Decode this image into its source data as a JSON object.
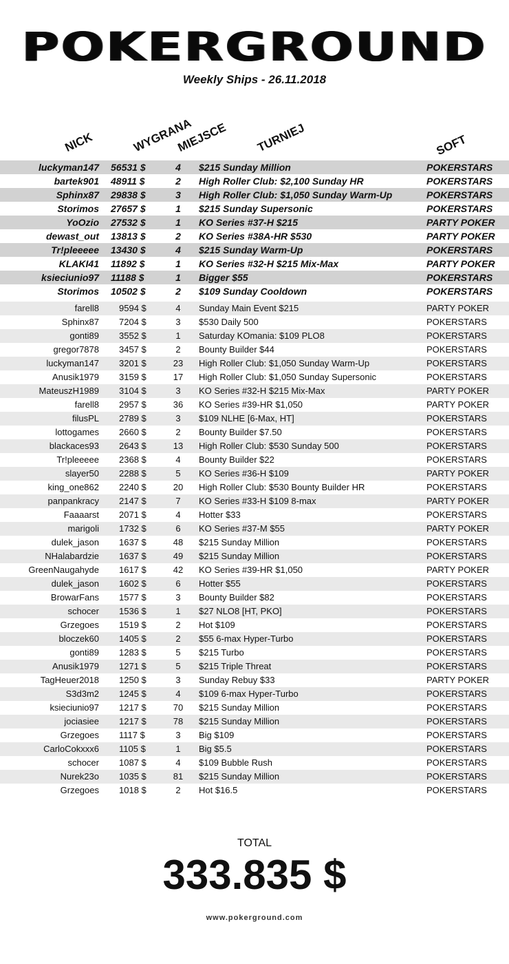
{
  "header": {
    "logo": "POKERGROUND",
    "subtitle": "Weekly Ships - 26.11.2018"
  },
  "columns": {
    "nick": "NICK",
    "amount": "WYGRANA",
    "place": "MIEJSCE",
    "tournament": "TURNIEJ",
    "soft": "SOFT"
  },
  "top_rows": [
    {
      "nick": "luckyman147",
      "amount": "56531 $",
      "place": "4",
      "tournament": "$215 Sunday Million",
      "soft": "POKERSTARS"
    },
    {
      "nick": "bartek901",
      "amount": "48911 $",
      "place": "2",
      "tournament": "High Roller Club: $2,100 Sunday HR",
      "soft": "POKERSTARS"
    },
    {
      "nick": "Sphinx87",
      "amount": "29838 $",
      "place": "3",
      "tournament": "High Roller Club: $1,050 Sunday Warm-Up",
      "soft": "POKERSTARS"
    },
    {
      "nick": "Storimos",
      "amount": "27657 $",
      "place": "1",
      "tournament": "$215 Sunday Supersonic",
      "soft": "POKERSTARS"
    },
    {
      "nick": "YoOzio",
      "amount": "27532 $",
      "place": "1",
      "tournament": "KO Series #37-H $215",
      "soft": "PARTY POKER"
    },
    {
      "nick": "dewast_out",
      "amount": "13813 $",
      "place": "2",
      "tournament": "KO Series #38A-HR $530",
      "soft": "PARTY POKER"
    },
    {
      "nick": "Tr!pleeeee",
      "amount": "13430 $",
      "place": "4",
      "tournament": "$215 Sunday Warm-Up",
      "soft": "POKERSTARS"
    },
    {
      "nick": "KLAKI41",
      "amount": "11892 $",
      "place": "1",
      "tournament": "KO Series #32-H $215 Mix-Max",
      "soft": "PARTY POKER"
    },
    {
      "nick": "ksieciunio97",
      "amount": "11188 $",
      "place": "1",
      "tournament": "Bigger $55",
      "soft": "POKERSTARS"
    },
    {
      "nick": "Storimos",
      "amount": "10502 $",
      "place": "2",
      "tournament": "$109 Sunday Cooldown",
      "soft": "POKERSTARS"
    }
  ],
  "rows": [
    {
      "nick": "farell8",
      "amount": "9594 $",
      "place": "4",
      "tournament": "Sunday Main Event $215",
      "soft": "PARTY POKER"
    },
    {
      "nick": "Sphinx87",
      "amount": "7204 $",
      "place": "3",
      "tournament": "$530 Daily 500",
      "soft": "POKERSTARS"
    },
    {
      "nick": "gonti89",
      "amount": "3552 $",
      "place": "1",
      "tournament": "Saturday KOmania: $109 PLO8",
      "soft": "POKERSTARS"
    },
    {
      "nick": "gregor7878",
      "amount": "3457 $",
      "place": "2",
      "tournament": "Bounty Builder $44",
      "soft": "POKERSTARS"
    },
    {
      "nick": "luckyman147",
      "amount": "3201 $",
      "place": "23",
      "tournament": "High Roller Club: $1,050 Sunday Warm-Up",
      "soft": "POKERSTARS"
    },
    {
      "nick": "Anusik1979",
      "amount": "3159 $",
      "place": "17",
      "tournament": "High Roller Club: $1,050 Sunday Supersonic",
      "soft": "POKERSTARS"
    },
    {
      "nick": "MateuszH1989",
      "amount": "3104 $",
      "place": "3",
      "tournament": "KO Series #32-H $215 Mix-Max",
      "soft": "PARTY POKER"
    },
    {
      "nick": "farell8",
      "amount": "2957 $",
      "place": "36",
      "tournament": "KO Series #39-HR $1,050",
      "soft": "PARTY POKER"
    },
    {
      "nick": "filusPL",
      "amount": "2789 $",
      "place": "3",
      "tournament": "$109 NLHE [6-Max, HT]",
      "soft": "POKERSTARS"
    },
    {
      "nick": "lottogames",
      "amount": "2660 $",
      "place": "2",
      "tournament": "Bounty Builder $7.50",
      "soft": "POKERSTARS"
    },
    {
      "nick": "blackaces93",
      "amount": "2643 $",
      "place": "13",
      "tournament": "High Roller Club: $530 Sunday 500",
      "soft": "POKERSTARS"
    },
    {
      "nick": "Tr!pleeeee",
      "amount": "2368 $",
      "place": "4",
      "tournament": "Bounty Builder $22",
      "soft": "POKERSTARS"
    },
    {
      "nick": "slayer50",
      "amount": "2288 $",
      "place": "5",
      "tournament": "KO Series #36-H $109",
      "soft": "PARTY POKER"
    },
    {
      "nick": "king_one862",
      "amount": "2240 $",
      "place": "20",
      "tournament": "High Roller Club: $530 Bounty Builder HR",
      "soft": "POKERSTARS"
    },
    {
      "nick": "panpankracy",
      "amount": "2147 $",
      "place": "7",
      "tournament": "KO Series #33-H $109 8-max",
      "soft": "PARTY POKER"
    },
    {
      "nick": "Faaaarst",
      "amount": "2071 $",
      "place": "4",
      "tournament": "Hotter $33",
      "soft": "POKERSTARS"
    },
    {
      "nick": "marigoli",
      "amount": "1732 $",
      "place": "6",
      "tournament": "KO Series #37-M $55",
      "soft": "PARTY POKER"
    },
    {
      "nick": "dulek_jason",
      "amount": "1637 $",
      "place": "48",
      "tournament": "$215 Sunday Million",
      "soft": "POKERSTARS"
    },
    {
      "nick": "NHalabardzie",
      "amount": "1637 $",
      "place": "49",
      "tournament": "$215 Sunday Million",
      "soft": "POKERSTARS"
    },
    {
      "nick": "GreenNaugahyde",
      "amount": "1617 $",
      "place": "42",
      "tournament": "KO Series #39-HR $1,050",
      "soft": "PARTY POKER"
    },
    {
      "nick": "dulek_jason",
      "amount": "1602 $",
      "place": "6",
      "tournament": "Hotter $55",
      "soft": "POKERSTARS"
    },
    {
      "nick": "BrowarFans",
      "amount": "1577 $",
      "place": "3",
      "tournament": "Bounty Builder $82",
      "soft": "POKERSTARS"
    },
    {
      "nick": "schocer",
      "amount": "1536 $",
      "place": "1",
      "tournament": "$27 NLO8 [HT, PKO]",
      "soft": "POKERSTARS"
    },
    {
      "nick": "Grzegoes",
      "amount": "1519 $",
      "place": "2",
      "tournament": "Hot $109",
      "soft": "POKERSTARS"
    },
    {
      "nick": "bloczek60",
      "amount": "1405 $",
      "place": "2",
      "tournament": "$55 6-max Hyper-Turbo",
      "soft": "POKERSTARS"
    },
    {
      "nick": "gonti89",
      "amount": "1283 $",
      "place": "5",
      "tournament": "$215 Turbo",
      "soft": "POKERSTARS"
    },
    {
      "nick": "Anusik1979",
      "amount": "1271 $",
      "place": "5",
      "tournament": "$215 Triple Threat",
      "soft": "POKERSTARS"
    },
    {
      "nick": "TagHeuer2018",
      "amount": "1250 $",
      "place": "3",
      "tournament": "Sunday Rebuy $33",
      "soft": "PARTY POKER"
    },
    {
      "nick": "S3d3m2",
      "amount": "1245 $",
      "place": "4",
      "tournament": "$109 6-max Hyper-Turbo",
      "soft": "POKERSTARS"
    },
    {
      "nick": "ksieciunio97",
      "amount": "1217 $",
      "place": "70",
      "tournament": "$215 Sunday Million",
      "soft": "POKERSTARS"
    },
    {
      "nick": "jociasiee",
      "amount": "1217 $",
      "place": "78",
      "tournament": "$215 Sunday Million",
      "soft": "POKERSTARS"
    },
    {
      "nick": "Grzegoes",
      "amount": "1117 $",
      "place": "3",
      "tournament": "Big $109",
      "soft": "POKERSTARS"
    },
    {
      "nick": "CarloCokxxx6",
      "amount": "1105 $",
      "place": "1",
      "tournament": "Big $5.5",
      "soft": "POKERSTARS"
    },
    {
      "nick": "schocer",
      "amount": "1087 $",
      "place": "4",
      "tournament": "$109 Bubble Rush",
      "soft": "POKERSTARS"
    },
    {
      "nick": "Nurek23o",
      "amount": "1035 $",
      "place": "81",
      "tournament": "$215 Sunday Million",
      "soft": "POKERSTARS"
    },
    {
      "nick": "Grzegoes",
      "amount": "1018 $",
      "place": "2",
      "tournament": "Hot $16.5",
      "soft": "POKERSTARS"
    }
  ],
  "footer": {
    "total_label": "TOTAL",
    "total_value": "333.835 $",
    "website": "www.pokerground.com"
  }
}
